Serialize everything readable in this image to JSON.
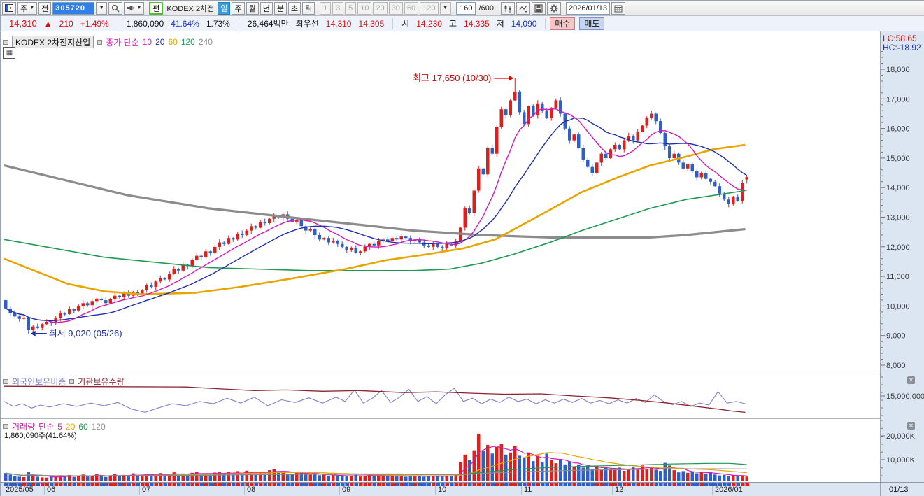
{
  "toolbar": {
    "cycle_label": "주",
    "prev_label": "전",
    "code_input": "305720",
    "edit_label": "편",
    "stock_name_short": "KODEX 2차전",
    "period_active": "일",
    "periods": [
      "주",
      "월",
      "년",
      "분",
      "초",
      "틱"
    ],
    "minutes": [
      "1",
      "3",
      "5",
      "10",
      "20",
      "30",
      "60",
      "120"
    ],
    "bar_count": "160",
    "bar_total": "/600",
    "date": "2026/01/13"
  },
  "price_bar": {
    "price": "14,310",
    "arrow": "▲",
    "change": "210",
    "change_pct": "+1.49%",
    "volume": "1,860,090",
    "turnover": "41.64%",
    "pct2": "1.73%",
    "value": "26,464백만",
    "best_label": "최우선",
    "ask": "14,310",
    "bid": "14,305",
    "open_label": "시",
    "open": "14,230",
    "high_label": "고",
    "high": "14,335",
    "low_label": "저",
    "low": "14,090",
    "buy_label": "매수",
    "sell_label": "매도"
  },
  "price_pane": {
    "title": "KODEX 2차전지산업",
    "legend_label": "종가 단순",
    "ma_labels": [
      "10",
      "20",
      "60",
      "120",
      "240"
    ],
    "ma_colors": [
      "#d41bb4",
      "#1f2fae",
      "#e8a400",
      "#1d9a50",
      "#8c8c8c"
    ],
    "lc_label": "LC:58.65",
    "hc_label": "HC:-18.92",
    "high_annotation": "최고 17,650 (10/30)",
    "low_annotation": "최저 9,020 (05/26)"
  },
  "ownership_pane": {
    "foreign_label": "외국인보유비중",
    "foreign_color": "#8080cc",
    "inst_label": "기관보유수량",
    "inst_color": "#8c2330",
    "y_tick": "15,000,000"
  },
  "volume_pane": {
    "legend_label": "거래량",
    "ma_label": "단순",
    "ma_labels": [
      "5",
      "20",
      "60",
      "120"
    ],
    "ma_colors": [
      "#d41bb4",
      "#e8a400",
      "#1d9a50",
      "#8c8c8c"
    ],
    "volume_text": "1,860,090주(41.64%)",
    "y_ticks": [
      "20,000K",
      "10,000K"
    ]
  },
  "x_axis": {
    "corner_label": "01/13"
  },
  "chart_data": {
    "type": "candlestick",
    "title": "KODEX 2차전지산업 (305720) 일봉",
    "price_axis": {
      "min": 8000,
      "max": 18000,
      "tick_step": 1000,
      "ticks": [
        18000,
        17000,
        16000,
        15000,
        14000,
        13000,
        12000,
        11000,
        10000,
        9000,
        8000
      ]
    },
    "colors": {
      "up": "#e01f1c",
      "down": "#2d5ecc"
    },
    "months": [
      {
        "label": "2025/05",
        "index": 0
      },
      {
        "label": "06",
        "index": 9
      },
      {
        "label": "07",
        "index": 30
      },
      {
        "label": "08",
        "index": 53
      },
      {
        "label": "09",
        "index": 74
      },
      {
        "label": "10",
        "index": 95
      },
      {
        "label": "11",
        "index": 114
      },
      {
        "label": "12",
        "index": 134
      },
      {
        "label": "2026/01",
        "index": 156
      }
    ],
    "first_open": 10150,
    "closes": [
      9870,
      9720,
      9600,
      9520,
      9560,
      9150,
      9260,
      9210,
      9340,
      9420,
      9380,
      9550,
      9700,
      9680,
      9850,
      9800,
      9950,
      10050,
      9980,
      10120,
      10200,
      10150,
      10050,
      10180,
      10300,
      10260,
      10380,
      10300,
      10420,
      10380,
      10500,
      10650,
      10600,
      10780,
      10900,
      10850,
      11050,
      11200,
      11150,
      11350,
      11300,
      11500,
      11650,
      11600,
      11800,
      11750,
      11950,
      12100,
      12050,
      12250,
      12200,
      12400,
      12350,
      12500,
      12650,
      12600,
      12800,
      12750,
      12900,
      13000,
      12950,
      13050,
      12900,
      12800,
      12850,
      12650,
      12500,
      12550,
      12350,
      12200,
      12250,
      12100,
      12150,
      12050,
      11950,
      11850,
      11900,
      11750,
      11800,
      11950,
      12050,
      12000,
      12150,
      12200,
      12150,
      12250,
      12200,
      12300,
      12250,
      12150,
      12200,
      12100,
      12000,
      11950,
      12050,
      11950,
      11900,
      12050,
      12000,
      12150,
      12600,
      13250,
      13100,
      13850,
      14600,
      14400,
      15300,
      15100,
      16000,
      16600,
      16400,
      16900,
      17200,
      16500,
      16100,
      16700,
      16400,
      16800,
      16550,
      16300,
      16650,
      16900,
      16450,
      15950,
      15550,
      15750,
      15300,
      14900,
      14650,
      14450,
      14800,
      15100,
      14950,
      15250,
      15400,
      15250,
      15550,
      15700,
      15550,
      15850,
      16050,
      16300,
      16450,
      16200,
      15800,
      15350,
      14950,
      15100,
      14800,
      14600,
      14750,
      14500,
      14300,
      14450,
      14250,
      14150,
      14000,
      13750,
      13550,
      13400,
      13650,
      13500,
      14100,
      14310
    ],
    "last_candle": {
      "open": 14230,
      "high": 14335,
      "low": 14090,
      "close": 14310
    },
    "high_override": {
      "index": 112,
      "high": 17650
    },
    "low_override": {
      "index": 5,
      "low": 9020
    },
    "ma_computed": [
      {
        "period": 10,
        "color": "#d41bb4",
        "w": 1.4
      },
      {
        "period": 20,
        "color": "#1f2fae",
        "w": 1.4
      }
    ],
    "ma_anchored": [
      {
        "period": 240,
        "color": "#8c8c8c",
        "w": 3.2,
        "anchors": [
          [
            0,
            14700
          ],
          [
            27,
            13700
          ],
          [
            45,
            13250
          ],
          [
            64,
            12930
          ],
          [
            75,
            12750
          ],
          [
            90,
            12500
          ],
          [
            105,
            12350
          ],
          [
            120,
            12270
          ],
          [
            142,
            12270
          ],
          [
            150,
            12350
          ],
          [
            163,
            12550
          ]
        ]
      },
      {
        "period": 120,
        "color": "#1d9a50",
        "w": 1.6,
        "anchors": [
          [
            0,
            12200
          ],
          [
            22,
            11600
          ],
          [
            45,
            11250
          ],
          [
            67,
            11150
          ],
          [
            90,
            11150
          ],
          [
            98,
            11200
          ],
          [
            105,
            11400
          ],
          [
            112,
            11700
          ],
          [
            120,
            12100
          ],
          [
            127,
            12500
          ],
          [
            135,
            12900
          ],
          [
            142,
            13250
          ],
          [
            150,
            13550
          ],
          [
            163,
            13850
          ]
        ]
      },
      {
        "period": 60,
        "color": "#e8a400",
        "w": 2.6,
        "anchors": [
          [
            0,
            11550
          ],
          [
            14,
            10700
          ],
          [
            22,
            10450
          ],
          [
            30,
            10350
          ],
          [
            42,
            10400
          ],
          [
            52,
            10600
          ],
          [
            64,
            10900
          ],
          [
            75,
            11200
          ],
          [
            84,
            11500
          ],
          [
            93,
            11700
          ],
          [
            101,
            11900
          ],
          [
            108,
            12200
          ],
          [
            114,
            12700
          ],
          [
            120,
            13200
          ],
          [
            127,
            13800
          ],
          [
            135,
            14300
          ],
          [
            142,
            14700
          ],
          [
            150,
            15000
          ],
          [
            156,
            15250
          ],
          [
            163,
            15400
          ]
        ]
      }
    ],
    "volumes_k": [
      3500,
      2800,
      2200,
      1800,
      1600,
      4200,
      2500,
      1800,
      1500,
      1400,
      1600,
      2000,
      2400,
      1800,
      2600,
      1700,
      2200,
      2800,
      1900,
      2400,
      2900,
      2100,
      1700,
      2300,
      3000,
      2200,
      2600,
      1900,
      3400,
      2400,
      2600,
      3200,
      2300,
      2800,
      3500,
      2400,
      3000,
      3800,
      2700,
      3300,
      2500,
      3600,
      4000,
      2800,
      3400,
      2600,
      3700,
      4200,
      3000,
      3900,
      2800,
      4400,
      3200,
      4600,
      3800,
      3000,
      4200,
      3400,
      4800,
      5200,
      3600,
      4400,
      3200,
      2900,
      3500,
      4000,
      3100,
      2700,
      3300,
      2500,
      2800,
      2200,
      2600,
      2000,
      2400,
      2000,
      2200,
      2600,
      1900,
      2300,
      2800,
      2100,
      2500,
      2900,
      2200,
      2600,
      2000,
      2400,
      1800,
      2200,
      1900,
      2300,
      1700,
      2000,
      2200,
      2100,
      1800,
      2400,
      2000,
      2600,
      8500,
      12000,
      9500,
      14000,
      21500,
      13500,
      16500,
      12500,
      15500,
      17000,
      12000,
      13000,
      16000,
      11500,
      10500,
      13000,
      9000,
      11500,
      8500,
      12500,
      9500,
      8000,
      10000,
      7500,
      9000,
      6500,
      7500,
      6000,
      7000,
      5500,
      6500,
      5000,
      6000,
      5500,
      5000,
      6000,
      4500,
      5500,
      6500,
      5000,
      7000,
      5500,
      6000,
      5000,
      4500,
      8200,
      7000,
      4800,
      3800,
      4400,
      3600,
      4200,
      3400,
      4000,
      3200,
      3800,
      2800,
      2400,
      2600,
      2200,
      2500,
      2100,
      2300,
      1860
    ],
    "volume_axis": {
      "ticks_k": [
        20000,
        10000
      ]
    },
    "volume_ma_computed": [
      {
        "period": 5,
        "color": "#d41bb4"
      },
      {
        "period": 20,
        "color": "#e8a400"
      },
      {
        "period": 60,
        "color": "#1d9a50"
      },
      {
        "period": 120,
        "color": "#8c8c8c"
      }
    ],
    "ownership": {
      "institution_anchors": [
        [
          0,
          0.09
        ],
        [
          20,
          0.1
        ],
        [
          40,
          0.11
        ],
        [
          48,
          0.17
        ],
        [
          55,
          0.22
        ],
        [
          62,
          0.2
        ],
        [
          70,
          0.24
        ],
        [
          78,
          0.22
        ],
        [
          88,
          0.28
        ],
        [
          95,
          0.26
        ],
        [
          103,
          0.3
        ],
        [
          110,
          0.33
        ],
        [
          118,
          0.32
        ],
        [
          125,
          0.38
        ],
        [
          133,
          0.44
        ],
        [
          140,
          0.52
        ],
        [
          146,
          0.6
        ],
        [
          152,
          0.7
        ],
        [
          157,
          0.78
        ],
        [
          160,
          0.84
        ],
        [
          163,
          0.88
        ]
      ],
      "foreign_anchors": [
        [
          0,
          0.55
        ],
        [
          2,
          0.7
        ],
        [
          4,
          0.62
        ],
        [
          6,
          0.75
        ],
        [
          8,
          0.66
        ],
        [
          10,
          0.72
        ],
        [
          13,
          0.62
        ],
        [
          16,
          0.7
        ],
        [
          19,
          0.6
        ],
        [
          22,
          0.68
        ],
        [
          25,
          0.58
        ],
        [
          28,
          0.78
        ],
        [
          31,
          0.88
        ],
        [
          34,
          0.74
        ],
        [
          37,
          0.62
        ],
        [
          40,
          0.68
        ],
        [
          43,
          0.55
        ],
        [
          46,
          0.62
        ],
        [
          49,
          0.45
        ],
        [
          52,
          0.6
        ],
        [
          55,
          0.42
        ],
        [
          58,
          0.68
        ],
        [
          61,
          0.5
        ],
        [
          64,
          0.58
        ],
        [
          67,
          0.44
        ],
        [
          70,
          0.6
        ],
        [
          73,
          0.42
        ],
        [
          75,
          0.55
        ],
        [
          77,
          0.2
        ],
        [
          79,
          0.6
        ],
        [
          81,
          0.45
        ],
        [
          83,
          0.22
        ],
        [
          85,
          0.58
        ],
        [
          87,
          0.42
        ],
        [
          89,
          0.18
        ],
        [
          91,
          0.55
        ],
        [
          93,
          0.4
        ],
        [
          95,
          0.62
        ],
        [
          97,
          0.35
        ],
        [
          99,
          0.15
        ],
        [
          101,
          0.55
        ],
        [
          103,
          0.45
        ],
        [
          105,
          0.62
        ],
        [
          107,
          0.48
        ],
        [
          109,
          0.58
        ],
        [
          111,
          0.42
        ],
        [
          113,
          0.55
        ],
        [
          115,
          0.48
        ],
        [
          117,
          0.62
        ],
        [
          119,
          0.5
        ],
        [
          121,
          0.6
        ],
        [
          123,
          0.48
        ],
        [
          125,
          0.58
        ],
        [
          127,
          0.46
        ],
        [
          129,
          0.6
        ],
        [
          131,
          0.52
        ],
        [
          133,
          0.62
        ],
        [
          135,
          0.5
        ],
        [
          137,
          0.6
        ],
        [
          139,
          0.46
        ],
        [
          141,
          0.58
        ],
        [
          143,
          0.35
        ],
        [
          145,
          0.55
        ],
        [
          147,
          0.65
        ],
        [
          149,
          0.55
        ],
        [
          151,
          0.7
        ],
        [
          153,
          0.6
        ],
        [
          155,
          0.66
        ],
        [
          157,
          0.25
        ],
        [
          159,
          0.6
        ],
        [
          161,
          0.55
        ],
        [
          163,
          0.62
        ]
      ]
    }
  }
}
